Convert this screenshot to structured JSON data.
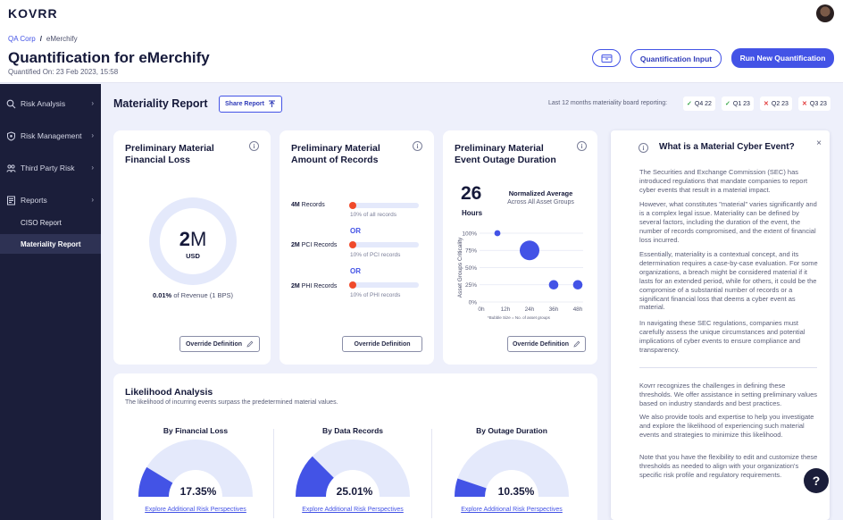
{
  "app": {
    "logo": "KOVRR"
  },
  "breadcrumb": {
    "parent": "QA Corp",
    "separator": "/",
    "current": "eMerchify"
  },
  "header": {
    "title": "Quantification for eMerchify",
    "quantified_on": "Quantified On: 23 Feb 2023, 15:58",
    "input_label": "Quantification Input",
    "run_label": "Run New Quantification"
  },
  "sidebar": {
    "items": [
      {
        "label": "Risk Analysis",
        "icon": "search-icon"
      },
      {
        "label": "Risk Management",
        "icon": "shield-icon"
      },
      {
        "label": "Third Party Risk",
        "icon": "users-icon"
      },
      {
        "label": "Reports",
        "icon": "document-icon"
      }
    ],
    "sub_items": [
      {
        "label": "CISO Report",
        "active": false
      },
      {
        "label": "Materiality Report",
        "active": true
      }
    ]
  },
  "materiality": {
    "title": "Materiality Report",
    "share_label": "Share Report",
    "board_label": "Last 12 months materiality board reporting:",
    "quarters": [
      {
        "label": "Q4 22",
        "status": "ok"
      },
      {
        "label": "Q1 23",
        "status": "ok"
      },
      {
        "label": "Q2 23",
        "status": "no"
      },
      {
        "label": "Q3 23",
        "status": "no"
      }
    ]
  },
  "cards": {
    "financial": {
      "title_line1": "Preliminary Material",
      "title_line2": "Financial Loss",
      "value_num": "2",
      "value_unit": "M",
      "currency": "USD",
      "revenue_bold": "0.01%",
      "revenue_rest": " of Revenue (1 BPS)",
      "override_label": "Override Definition"
    },
    "records": {
      "title_line1": "Preliminary Material",
      "title_line2": "Amount of Records",
      "rows": [
        {
          "amount": "4M",
          "label": " Records",
          "sub": "10% of all records"
        },
        {
          "amount": "2M",
          "label": "  PCI Records",
          "sub": "10% of PCI records"
        },
        {
          "amount": "2M",
          "label": "  PHI Records",
          "sub": "10% of PHI records"
        }
      ],
      "or_label": "OR",
      "override_label": "Override Definition"
    },
    "outage": {
      "title_line1": "Preliminary Material",
      "title_line2": "Event Outage Duration",
      "value": "26",
      "unit": "Hours",
      "norm_title": "Normalized Average",
      "norm_sub": "Across All Asset Groups",
      "override_label": "Override Definition"
    }
  },
  "chart_data": {
    "type": "scatter",
    "title": "",
    "xlabel": "",
    "ylabel": "Asset Groups Criticality",
    "x_ticks": [
      "0h",
      "12h",
      "24h",
      "36h",
      "48h"
    ],
    "y_ticks": [
      "0%",
      "25%",
      "50%",
      "75%",
      "100%"
    ],
    "xlim": [
      0,
      48
    ],
    "ylim": [
      0,
      100
    ],
    "footnote": "*Bubble Size = No. of asset groups",
    "points": [
      {
        "x": 8,
        "y": 100,
        "size": 1
      },
      {
        "x": 24,
        "y": 75,
        "size": 5
      },
      {
        "x": 36,
        "y": 25,
        "size": 2
      },
      {
        "x": 48,
        "y": 25,
        "size": 2
      }
    ],
    "color": "#4353e6"
  },
  "info_panel": {
    "title": "What is a Material Cyber Event?",
    "close": "×",
    "paragraphs": [
      "The Securities and Exchange Commission (SEC) has introduced regulations that mandate companies to report cyber events that result in a material impact.",
      "However, what constitutes \"material\" varies significantly and is a complex legal issue. Materiality can be defined by several factors, including the duration of the event, the number of records compromised, and the extent of financial loss incurred.",
      "Essentially, materiality is a contextual concept, and its determination requires a case-by-case evaluation. For some organizations, a breach might be considered material if it lasts for an extended period, while for others, it could be the compromise of a substantial number of records or a significant financial loss that deems a cyber event as material.",
      "In navigating these SEC regulations, companies must carefully assess the unique circumstances and potential implications of cyber events to ensure compliance and transparency.",
      "Kovrr recognizes the challenges in defining these thresholds. We offer assistance in setting preliminary values based on industry standards and best practices.",
      "We also provide tools and expertise to help you investigate and explore the likelihood of experiencing such material events and strategies to minimize this likelihood.",
      "Note that you have the flexibility to edit and customize these thresholds as needed to align with your organization's specific risk profile and regulatory requirements."
    ]
  },
  "likelihood": {
    "title": "Likelihood Analysis",
    "subtitle": "The likelihood of incurring events surpass the predetermined material values.",
    "columns": [
      {
        "title": "By Financial Loss",
        "percent": "17.35%",
        "value": 17.35,
        "link": "Explore Additional Risk Perspectives"
      },
      {
        "title": "By Data Records",
        "percent": "25.01%",
        "value": 25.01,
        "link": "Explore Additional Risk Perspectives"
      },
      {
        "title": "By Outage Duration",
        "percent": "10.35%",
        "value": 10.35,
        "link": "Explore Additional Risk Perspectives"
      }
    ]
  },
  "help": {
    "label": "?"
  },
  "colors": {
    "accent": "#4353e6",
    "sidebar": "#1b1e3a",
    "record_dot": "#f04a2b",
    "gauge_track": "#e4e9fb"
  }
}
